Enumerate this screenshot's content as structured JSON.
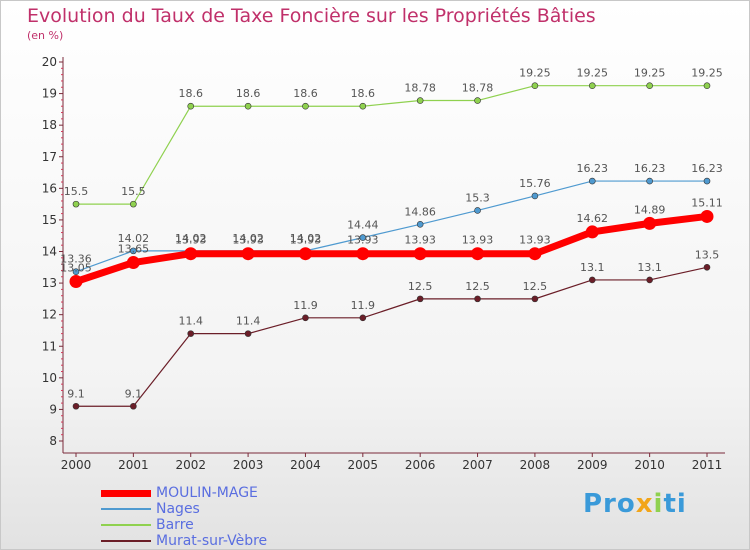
{
  "chart_data": {
    "type": "line",
    "title": "Evolution du Taux de Taxe Foncière sur les Propriétés Bâties",
    "ylabel": "(en %)",
    "xlabel": "",
    "ylim": [
      8,
      20
    ],
    "y_ticks": [
      "8",
      "9",
      "10",
      "11",
      "12",
      "13",
      "14",
      "15",
      "16",
      "17",
      "18",
      "19",
      "20"
    ],
    "categories": [
      "2000",
      "2001",
      "2002",
      "2003",
      "2004",
      "2005",
      "2006",
      "2007",
      "2008",
      "2009",
      "2010",
      "2011"
    ],
    "series": [
      {
        "name": "Murat-sur-Vèbre",
        "color": "#6b1e28",
        "weight": "thin",
        "values": [
          9.1,
          9.1,
          11.4,
          11.4,
          11.9,
          11.9,
          12.5,
          12.5,
          12.5,
          13.1,
          13.1,
          13.5
        ],
        "labels": [
          "9.1",
          "9.1",
          "11.4",
          "11.4",
          "11.9",
          "11.9",
          "12.5",
          "12.5",
          "12.5",
          "13.1",
          "13.1",
          "13.5"
        ]
      },
      {
        "name": "Barre",
        "color": "#8fd14f",
        "weight": "thin",
        "values": [
          15.5,
          15.5,
          18.6,
          18.6,
          18.6,
          18.6,
          18.78,
          18.78,
          19.25,
          19.25,
          19.25,
          19.25
        ],
        "labels": [
          "15.5",
          "15.5",
          "18.6",
          "18.6",
          "18.6",
          "18.6",
          "18.78",
          "18.78",
          "19.25",
          "19.25",
          "19.25",
          "19.25"
        ]
      },
      {
        "name": "Nages",
        "color": "#4f9ad0",
        "weight": "thin",
        "values": [
          13.36,
          14.02,
          14.02,
          14.02,
          14.02,
          14.44,
          14.86,
          15.3,
          15.76,
          16.23,
          16.23,
          16.23
        ],
        "labels": [
          "13.36",
          "14.02",
          "14.02",
          "14.02",
          "14.02",
          "14.44",
          "14.86",
          "15.3",
          "15.76",
          "16.23",
          "16.23",
          "16.23"
        ]
      },
      {
        "name": "MOULIN-MAGE",
        "color": "#ff0000",
        "weight": "thick",
        "values": [
          13.05,
          13.65,
          13.93,
          13.93,
          13.93,
          13.93,
          13.93,
          13.93,
          13.93,
          14.62,
          14.89,
          15.11
        ],
        "labels": [
          "13.05",
          "13.65",
          "13.93",
          "13.93",
          "13.93",
          "13.93",
          "13.93",
          "13.93",
          "13.93",
          "14.62",
          "14.89",
          "15.11"
        ]
      }
    ],
    "legend": [
      "MOULIN-MAGE",
      "Nages",
      "Barre",
      "Murat-sur-Vèbre"
    ],
    "legend_position": "bottom-left",
    "grid": false
  },
  "logo": {
    "parts": [
      "Pro",
      "x",
      "i",
      "ti"
    ],
    "colors": [
      "#3a9ad9",
      "#f2a51a",
      "#8fd14f",
      "#3a9ad9"
    ]
  }
}
